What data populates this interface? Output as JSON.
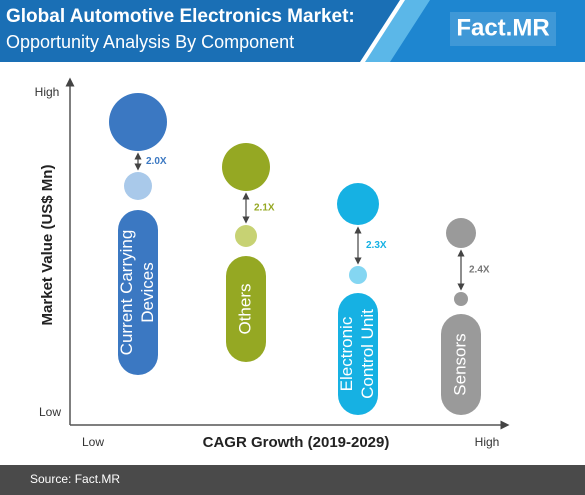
{
  "header": {
    "title": "Global Automotive Electronics Market:",
    "subtitle": "Opportunity Analysis By Component",
    "logo": "Fact.MR"
  },
  "y_axis": {
    "title": "Market Value (US$ Mn)",
    "high": "High",
    "low": "Low"
  },
  "x_axis": {
    "title": "CAGR Growth (2019-2029)",
    "low": "Low",
    "high": "High"
  },
  "components": [
    {
      "label_lines": [
        "Current Carrying",
        "Devices"
      ],
      "ratio": "2.0X",
      "color": "#3b78c2",
      "light_color": "#a9c9ea"
    },
    {
      "label_lines": [
        "Others"
      ],
      "ratio": "2.1X",
      "color": "#95a823",
      "light_color": "#c7d273"
    },
    {
      "label_lines": [
        "Electronic",
        "Control Unit"
      ],
      "ratio": "2.3X",
      "color": "#16b1e3",
      "light_color": "#84d6f2"
    },
    {
      "label_lines": [
        "Sensors"
      ],
      "ratio": "2.4X",
      "color": "#9a9a9a",
      "light_color": "#9a9a9a"
    }
  ],
  "footer": {
    "source": "Source: Fact.MR"
  }
}
